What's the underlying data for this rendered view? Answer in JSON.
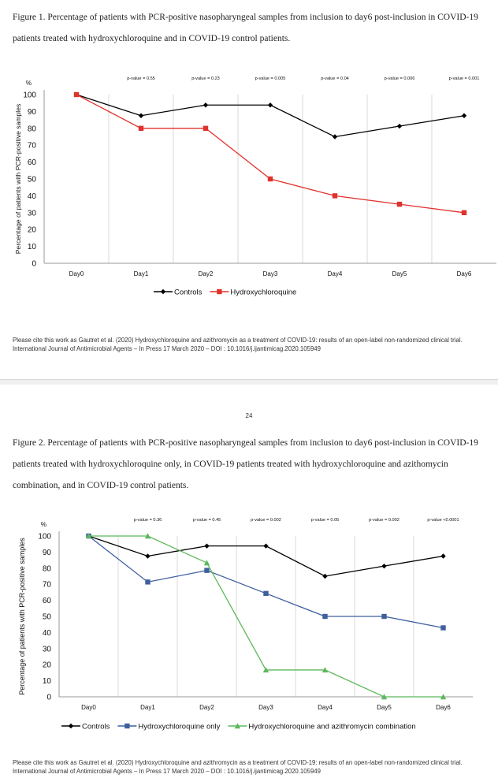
{
  "figure1": {
    "caption": "Figure 1. Percentage of patients with PCR-positive nasopharyngeal samples from inclusion to day6 post-inclusion in COVID-19 patients treated with hydroxychloroquine and in COVID-19 control patients.",
    "citation": "Please cite this work as Gautret et al. (2020) Hydroxychloroquine and azithromycin as a treatment of COVID-19: results of an open-label non-randomized clinical trial. International Journal of Antimicrobial Agents – In Press 17 March 2020 – DOI : 10.1016/j.ijantimicag.2020.105949"
  },
  "page_number": "24",
  "figure2": {
    "caption": "Figure 2. Percentage of patients with PCR-positive nasopharyngeal samples from inclusion to day6 post-inclusion in COVID-19 patients treated with hydroxychloroquine only, in COVID-19 patients treated with hydroxychloroquine and azithomycin combination, and in COVID-19 control patients.",
    "citation": "Please cite this work as Gautret et al. (2020) Hydroxychloroquine and azithromycin as a treatment of COVID-19: results of an open-label non-randomized clinical trial. International Journal of Antimicrobial Agents – In Press 17 March 2020 – DOI : 10.1016/j.ijantimicag.2020.105949"
  },
  "chart_data": [
    {
      "type": "line",
      "categories": [
        "Day0",
        "Day1",
        "Day2",
        "Day3",
        "Day4",
        "Day5",
        "Day6"
      ],
      "ylabel": "Percentage of patients with PCR-positive samples",
      "yunit": "%",
      "ylim": [
        0,
        100
      ],
      "yticks": [
        0,
        10,
        20,
        30,
        40,
        50,
        60,
        70,
        80,
        90,
        100
      ],
      "grid": "vertical",
      "legend_position": "bottom",
      "annotations": [
        "p-value = 0.55",
        "p-value = 0.23",
        "p-value = 0.005",
        "p-value = 0.04",
        "p-value = 0.006",
        "p-value = 0.001"
      ],
      "series": [
        {
          "name": "Controls",
          "color": "#000000",
          "marker": "diamond",
          "values": [
            100,
            87.5,
            93.8,
            93.8,
            75,
            81.3,
            87.5
          ]
        },
        {
          "name": "Hydroxychloroquine",
          "color": "#e0312b",
          "marker": "square",
          "values": [
            100,
            80,
            80,
            50,
            40,
            35,
            30
          ]
        }
      ]
    },
    {
      "type": "line",
      "categories": [
        "Day0",
        "Day1",
        "Day2",
        "Day3",
        "Day4",
        "Day5",
        "Day6"
      ],
      "ylabel": "Percentage of patients with PCR-positive samples",
      "yunit": "%",
      "ylim": [
        0,
        100
      ],
      "yticks": [
        0,
        10,
        20,
        30,
        40,
        50,
        60,
        70,
        80,
        90,
        100
      ],
      "grid": "vertical",
      "legend_position": "bottom",
      "annotations": [
        "p-value = 0.36",
        "p-value = 0.45",
        "p-value = 0.002",
        "p-value = 0.05",
        "p-value = 0.002",
        "p-value <0.0001"
      ],
      "series": [
        {
          "name": "Controls",
          "color": "#000000",
          "marker": "diamond",
          "values": [
            100,
            87.5,
            93.8,
            93.8,
            75,
            81.3,
            87.5
          ]
        },
        {
          "name": "Hydroxychloroquine only",
          "color": "#3f5f9e",
          "marker": "square",
          "values": [
            100,
            71.4,
            78.6,
            64.3,
            50,
            50,
            42.9
          ]
        },
        {
          "name": "Hydroxychloroquine and azithromycin combination",
          "color": "#5cb85c",
          "marker": "triangle",
          "values": [
            100,
            100,
            83.3,
            16.7,
            16.7,
            0,
            0
          ]
        }
      ]
    }
  ]
}
